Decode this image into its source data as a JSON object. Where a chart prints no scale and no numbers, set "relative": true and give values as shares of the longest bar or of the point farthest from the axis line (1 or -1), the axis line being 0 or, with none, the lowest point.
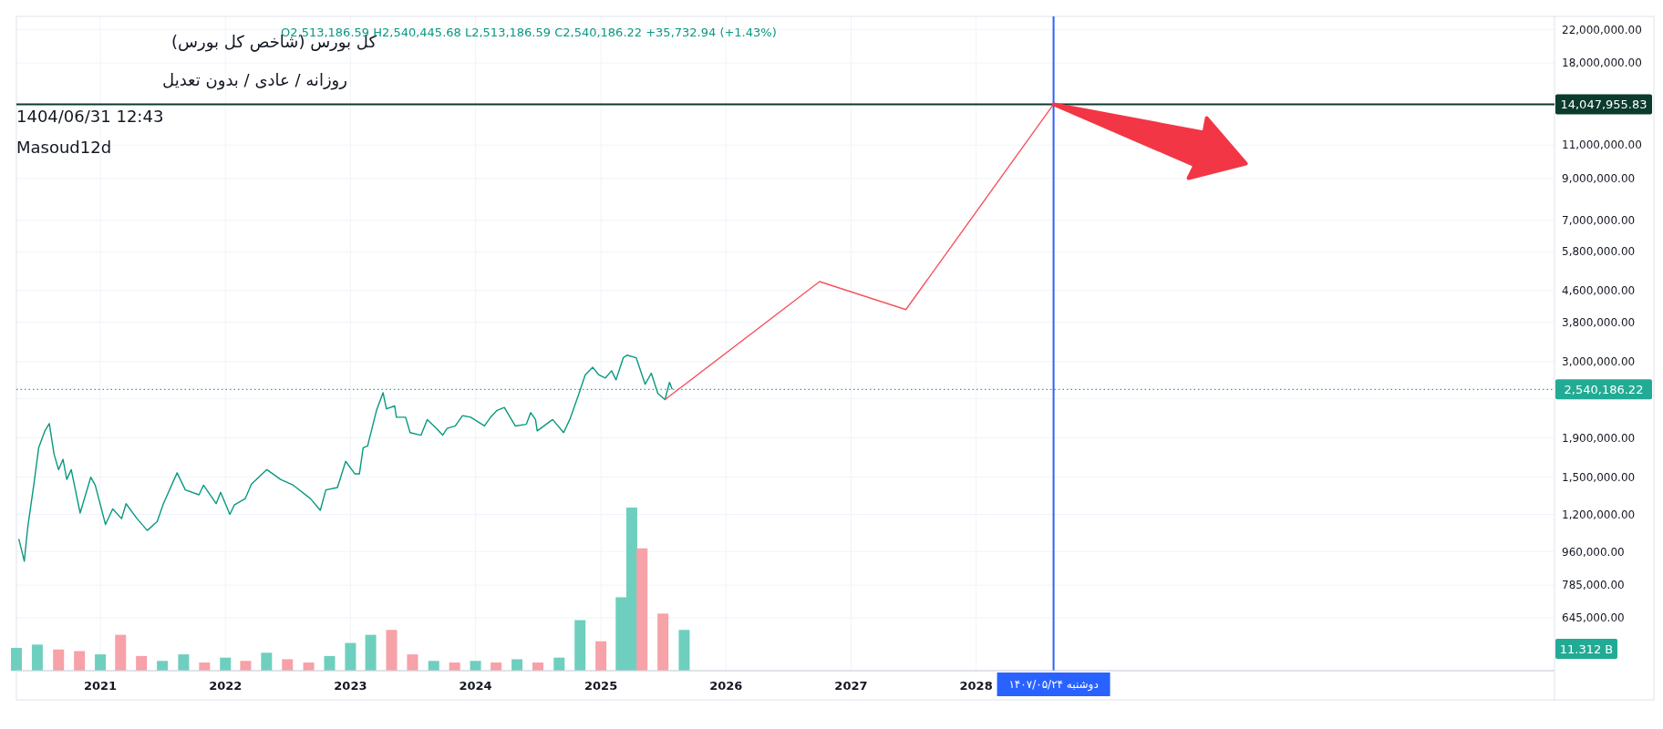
{
  "chart_data": [
    {
      "type": "line",
      "title": "کل بورس (شاخص کل بورس)",
      "subtitle": "روزانه / عادی / بدون تعدیل",
      "annotations": [
        "O2,513,186.59 H2,540,445.68 L2,513,186.59 C2,540,186.22 +35,732.94 (+1.43%)",
        "1404/06/31 12:43",
        "Masoud12d"
      ],
      "log": "y",
      "grid": true,
      "line_style": "solid",
      "marker": "none",
      "xlim": [
        "2020-05-01",
        "2032-08-15"
      ],
      "xticks": [
        {
          "value": "2021",
          "label": "2021"
        },
        {
          "value": "2022",
          "label": "2022"
        },
        {
          "value": "2023",
          "label": "2023"
        },
        {
          "value": "2024",
          "label": "2024"
        },
        {
          "value": "2025",
          "label": "2025"
        },
        {
          "value": "2026",
          "label": "2026"
        },
        {
          "value": "2027",
          "label": "2027"
        },
        {
          "value": "2028",
          "label": "2028"
        }
      ],
      "ylim": [
        470000,
        23800000
      ],
      "yticks": [
        {
          "value": 645000,
          "label": "645,000.00"
        },
        {
          "value": 785000,
          "label": "785,000.00"
        },
        {
          "value": 960000,
          "label": "960,000.00"
        },
        {
          "value": 1200000,
          "label": "1,200,000.00"
        },
        {
          "value": 1500000,
          "label": "1,500,000.00"
        },
        {
          "value": 1900000,
          "label": "1,900,000.00"
        },
        {
          "value": 2400000,
          "label": null
        },
        {
          "value": 3000000,
          "label": "3,000,000.00"
        },
        {
          "value": 3800000,
          "label": "3,800,000.00"
        },
        {
          "value": 4600000,
          "label": "4,600,000.00"
        },
        {
          "value": 5800000,
          "label": "5,800,000.00"
        },
        {
          "value": 7000000,
          "label": "7,000,000.00"
        },
        {
          "value": 9000000,
          "label": "9,000,000.00"
        },
        {
          "value": 11000000,
          "label": "11,000,000.00"
        },
        {
          "value": 18000000,
          "label": "18,000,000.00"
        },
        {
          "value": 22000000,
          "label": "22,000,000.00"
        }
      ],
      "ref_lines": [
        {
          "axis": "y",
          "value": 14047955.83,
          "label": "14,047,955.83",
          "color": "#0b3b2c",
          "line_style": "solid"
        },
        {
          "axis": "y",
          "value": 2540186.22,
          "label": "2,540,186.22",
          "color": "#22ab94",
          "line_style": "dotted"
        },
        {
          "axis": "x",
          "value": "2028-08-14",
          "label": "دوشنبه ۱۴۰۷/۰۵/۲۴",
          "color": "#2962ff",
          "line_style": "solid"
        }
      ],
      "series": [
        {
          "color": "#089981",
          "x": [
            "2020-05-08",
            "2020-05-24",
            "2020-06-03",
            "2020-06-22",
            "2020-07-05",
            "2020-07-23",
            "2020-08-05",
            "2020-08-19",
            "2020-09-01",
            "2020-09-14",
            "2020-09-25",
            "2020-10-08",
            "2020-11-03",
            "2020-12-04",
            "2020-12-17",
            "2021-01-16",
            "2021-02-06",
            "2021-03-04",
            "2021-03-17",
            "2021-04-18",
            "2021-05-18",
            "2021-06-16",
            "2021-07-04",
            "2021-08-13",
            "2021-09-06",
            "2021-10-16",
            "2021-10-29",
            "2021-12-05",
            "2021-12-18",
            "2022-01-14",
            "2022-01-27",
            "2022-02-28",
            "2022-03-18",
            "2022-05-02",
            "2022-06-11",
            "2022-07-18",
            "2022-09-06",
            "2022-10-05",
            "2022-10-21",
            "2022-11-24",
            "2022-12-18",
            "2023-01-14",
            "2023-01-27",
            "2023-02-07",
            "2023-02-20",
            "2023-03-18",
            "2023-04-06",
            "2023-04-16",
            "2023-05-10",
            "2023-05-15",
            "2023-06-11",
            "2023-06-24",
            "2023-07-26",
            "2023-08-13",
            "2023-09-09",
            "2023-09-27",
            "2023-10-10",
            "2023-11-03",
            "2023-11-24",
            "2023-12-18",
            "2024-01-27",
            "2024-02-14",
            "2024-03-04",
            "2024-03-25",
            "2024-04-26",
            "2024-05-28",
            "2024-06-10",
            "2024-06-24",
            "2024-06-29",
            "2024-07-25",
            "2024-08-13",
            "2024-09-14",
            "2024-10-02",
            "2024-10-29",
            "2024-11-16",
            "2024-12-08",
            "2024-12-26",
            "2025-01-14",
            "2025-02-01",
            "2025-02-14",
            "2025-03-07",
            "2025-03-18",
            "2025-04-14",
            "2025-05-10",
            "2025-05-28",
            "2025-06-16",
            "2025-07-07",
            "2025-07-20",
            "2025-07-28"
          ],
          "values": [
            1036000,
            906000,
            1110000,
            1460000,
            1790000,
            1980000,
            2070000,
            1720000,
            1570000,
            1670000,
            1480000,
            1570000,
            1210000,
            1500000,
            1430000,
            1130000,
            1240000,
            1170000,
            1280000,
            1170000,
            1090000,
            1150000,
            1280000,
            1540000,
            1390000,
            1350000,
            1430000,
            1280000,
            1370000,
            1200000,
            1270000,
            1320000,
            1440000,
            1570000,
            1480000,
            1430000,
            1320000,
            1230000,
            1390000,
            1410000,
            1650000,
            1530000,
            1530000,
            1790000,
            1810000,
            2240000,
            2490000,
            2260000,
            2300000,
            2150000,
            2150000,
            1960000,
            1930000,
            2120000,
            2010000,
            1930000,
            2010000,
            2040000,
            2170000,
            2150000,
            2040000,
            2150000,
            2240000,
            2280000,
            2040000,
            2060000,
            2210000,
            2120000,
            1980000,
            2060000,
            2120000,
            1960000,
            2120000,
            2480000,
            2770000,
            2900000,
            2770000,
            2720000,
            2840000,
            2690000,
            3070000,
            3120000,
            3070000,
            2620000,
            2800000,
            2480000,
            2390000,
            2650000,
            2540186.22
          ]
        },
        {
          "color": "#f7525f",
          "x": [
            "2025-07-07",
            "2026-10-01",
            "2027-06-10",
            "2028-08-14"
          ],
          "values": [
            2390000,
            4850000,
            4100000,
            14047955.83
          ]
        }
      ]
    },
    {
      "type": "bar",
      "relative": true,
      "annotations": [
        "11.312 B"
      ],
      "xlim": [
        "2020-05-01",
        "2032-08-15"
      ],
      "x": [
        "2020-05",
        "2020-07",
        "2020-09",
        "2020-11",
        "2021-01",
        "2021-03",
        "2021-05",
        "2021-07",
        "2021-09",
        "2021-11",
        "2022-01",
        "2022-03",
        "2022-05",
        "2022-07",
        "2022-09",
        "2022-11",
        "2023-01",
        "2023-03",
        "2023-05",
        "2023-07",
        "2023-09",
        "2023-11",
        "2024-01",
        "2024-03",
        "2024-05",
        "2024-07",
        "2024-09",
        "2024-11",
        "2025-01",
        "2025-03",
        "2025-04",
        "2025-05",
        "2025-07",
        "2025-09"
      ],
      "values": [
        0.14,
        0.16,
        0.13,
        0.12,
        0.1,
        0.22,
        0.09,
        0.06,
        0.1,
        0.05,
        0.08,
        0.06,
        0.11,
        0.07,
        0.05,
        0.09,
        0.17,
        0.22,
        0.25,
        0.1,
        0.06,
        0.05,
        0.06,
        0.05,
        0.07,
        0.05,
        0.08,
        0.31,
        0.18,
        0.45,
        1,
        0.75,
        0.35,
        0.25
      ],
      "colors": [
        "#6fcfbe",
        "#6fcfbe",
        "#f7a1a8",
        "#f7a1a8",
        "#6fcfbe",
        "#f7a1a8",
        "#f7a1a8",
        "#6fcfbe",
        "#6fcfbe",
        "#f7a1a8",
        "#6fcfbe",
        "#f7a1a8",
        "#6fcfbe",
        "#f7a1a8",
        "#f7a1a8",
        "#6fcfbe",
        "#6fcfbe",
        "#6fcfbe",
        "#f7a1a8",
        "#f7a1a8",
        "#6fcfbe",
        "#f7a1a8",
        "#6fcfbe",
        "#f7a1a8",
        "#6fcfbe",
        "#f7a1a8",
        "#6fcfbe",
        "#6fcfbe",
        "#f7a1a8",
        "#6fcfbe",
        "#6fcfbe",
        "#f7a1a8",
        "#f7a1a8",
        "#6fcfbe"
      ]
    }
  ]
}
